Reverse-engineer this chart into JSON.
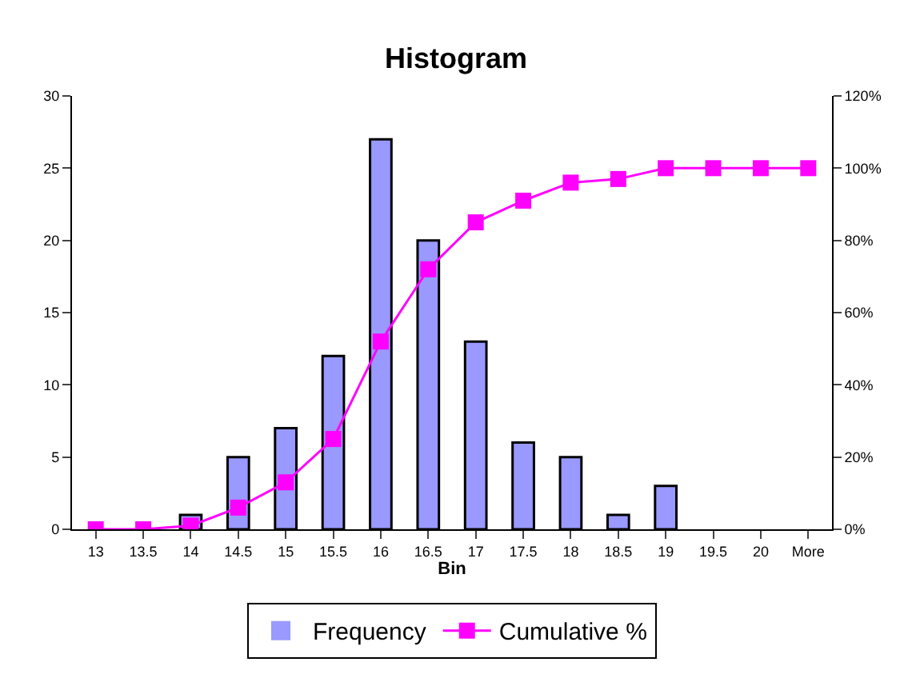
{
  "chart_data": {
    "type": "bar",
    "title": "Histogram",
    "xlabel": "Bin",
    "categories": [
      "13",
      "13.5",
      "14",
      "14.5",
      "15",
      "15.5",
      "16",
      "16.5",
      "17",
      "17.5",
      "18",
      "18.5",
      "19",
      "19.5",
      "20",
      "More"
    ],
    "series": [
      {
        "name": "Frequency",
        "color": "#9999ff",
        "values": [
          0,
          0,
          1,
          5,
          7,
          12,
          27,
          20,
          13,
          6,
          5,
          1,
          3,
          0,
          0,
          0
        ]
      },
      {
        "name": "Cumulative %",
        "type": "line",
        "axis": "y2",
        "color": "#ff00ff",
        "marker": "square",
        "values": [
          0,
          0,
          1,
          6,
          13,
          25,
          52,
          72,
          85,
          91,
          96,
          97,
          100,
          100,
          100,
          100
        ]
      }
    ],
    "ylim": [
      0,
      30
    ],
    "yticks": [
      0,
      5,
      10,
      15,
      20,
      25,
      30
    ],
    "y2lim": [
      0,
      120
    ],
    "y2ticks": [
      {
        "value": 0,
        "label": "0%"
      },
      {
        "value": 20,
        "label": "20%"
      },
      {
        "value": 40,
        "label": "40%"
      },
      {
        "value": 60,
        "label": "60%"
      },
      {
        "value": 80,
        "label": "80%"
      },
      {
        "value": 100,
        "label": "100%"
      },
      {
        "value": 120,
        "label": "120%"
      }
    ],
    "legend": "bottom"
  }
}
